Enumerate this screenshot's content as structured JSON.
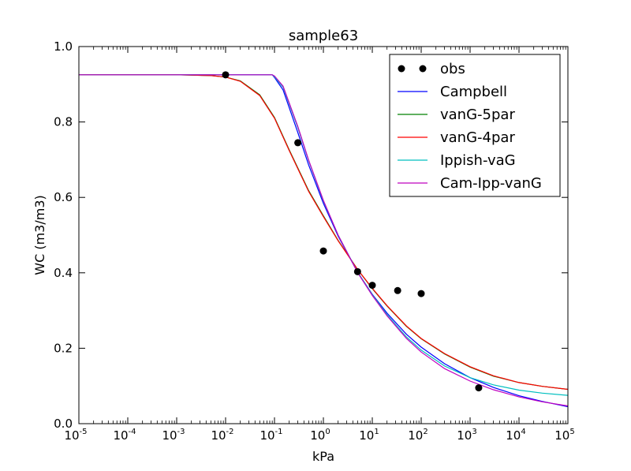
{
  "chart_data": {
    "type": "line",
    "title": "sample63",
    "xlabel": "kPa",
    "ylabel": "WC (m3/m3)",
    "xscale": "log",
    "xlim": [
      1e-05,
      100000
    ],
    "ylim": [
      0.0,
      1.0
    ],
    "x_ticks": [
      {
        "base": "10",
        "exp": "-5",
        "value": 1e-05
      },
      {
        "base": "10",
        "exp": "-4",
        "value": 0.0001
      },
      {
        "base": "10",
        "exp": "-3",
        "value": 0.001
      },
      {
        "base": "10",
        "exp": "-2",
        "value": 0.01
      },
      {
        "base": "10",
        "exp": "-1",
        "value": 0.1
      },
      {
        "base": "10",
        "exp": "0",
        "value": 1
      },
      {
        "base": "10",
        "exp": "1",
        "value": 10
      },
      {
        "base": "10",
        "exp": "2",
        "value": 100
      },
      {
        "base": "10",
        "exp": "3",
        "value": 1000
      },
      {
        "base": "10",
        "exp": "4",
        "value": 10000
      },
      {
        "base": "10",
        "exp": "5",
        "value": 100000
      }
    ],
    "y_ticks": [
      "0.0",
      "0.2",
      "0.4",
      "0.6",
      "0.8",
      "1.0"
    ],
    "grid": false,
    "legend_position": "top-right",
    "observations": {
      "name": "obs",
      "color": "#000000",
      "x": [
        0.01,
        0.3,
        1,
        5,
        10,
        33,
        100,
        1500
      ],
      "y": [
        0.925,
        0.745,
        0.458,
        0.403,
        0.367,
        0.353,
        0.345,
        0.095
      ]
    },
    "series": [
      {
        "name": "Campbell",
        "color": "#0000ff",
        "x": [
          1e-05,
          0.01,
          0.09,
          0.1,
          0.15,
          0.3,
          0.5,
          1,
          2,
          5,
          10,
          20,
          50,
          100,
          300,
          1000,
          3000,
          10000,
          30000,
          100000
        ],
        "y": [
          0.925,
          0.925,
          0.925,
          0.918,
          0.885,
          0.772,
          0.686,
          0.584,
          0.497,
          0.402,
          0.343,
          0.293,
          0.237,
          0.203,
          0.159,
          0.122,
          0.096,
          0.074,
          0.059,
          0.045
        ]
      },
      {
        "name": "vanG-5par",
        "color": "#008000",
        "x": [
          1e-05,
          0.001,
          0.005,
          0.01,
          0.02,
          0.05,
          0.1,
          0.2,
          0.5,
          1,
          2,
          5,
          10,
          20,
          50,
          100,
          300,
          1000,
          3000,
          10000,
          30000,
          100000
        ],
        "y": [
          0.925,
          0.925,
          0.923,
          0.919,
          0.909,
          0.872,
          0.812,
          0.726,
          0.618,
          0.551,
          0.486,
          0.409,
          0.358,
          0.312,
          0.258,
          0.225,
          0.185,
          0.15,
          0.126,
          0.109,
          0.099,
          0.091
        ]
      },
      {
        "name": "vanG-4par",
        "color": "#ff0000",
        "x": [
          1e-05,
          0.001,
          0.005,
          0.01,
          0.02,
          0.05,
          0.1,
          0.2,
          0.5,
          1,
          2,
          5,
          10,
          20,
          50,
          100,
          300,
          1000,
          3000,
          10000,
          30000,
          100000
        ],
        "y": [
          0.925,
          0.925,
          0.923,
          0.919,
          0.908,
          0.87,
          0.81,
          0.724,
          0.616,
          0.549,
          0.485,
          0.409,
          0.359,
          0.313,
          0.259,
          0.226,
          0.186,
          0.151,
          0.127,
          0.109,
          0.099,
          0.091
        ]
      },
      {
        "name": "Ippish-vaG",
        "color": "#00bfbf",
        "x": [
          1e-05,
          0.01,
          0.09,
          0.1,
          0.15,
          0.3,
          0.5,
          1,
          2,
          5,
          10,
          20,
          50,
          100,
          300,
          1000,
          3000,
          10000,
          30000,
          100000
        ],
        "y": [
          0.925,
          0.925,
          0.925,
          0.92,
          0.892,
          0.785,
          0.697,
          0.59,
          0.5,
          0.402,
          0.342,
          0.289,
          0.23,
          0.195,
          0.153,
          0.122,
          0.103,
          0.089,
          0.081,
          0.075
        ]
      },
      {
        "name": "Cam-Ipp-vanG",
        "color": "#bf00bf",
        "x": [
          1e-05,
          0.01,
          0.09,
          0.1,
          0.15,
          0.3,
          0.5,
          1,
          2,
          5,
          10,
          20,
          50,
          100,
          300,
          1000,
          3000,
          10000,
          30000,
          100000
        ],
        "y": [
          0.925,
          0.925,
          0.925,
          0.922,
          0.895,
          0.788,
          0.699,
          0.592,
          0.5,
          0.401,
          0.34,
          0.286,
          0.226,
          0.19,
          0.146,
          0.113,
          0.09,
          0.071,
          0.058,
          0.047
        ]
      }
    ]
  }
}
